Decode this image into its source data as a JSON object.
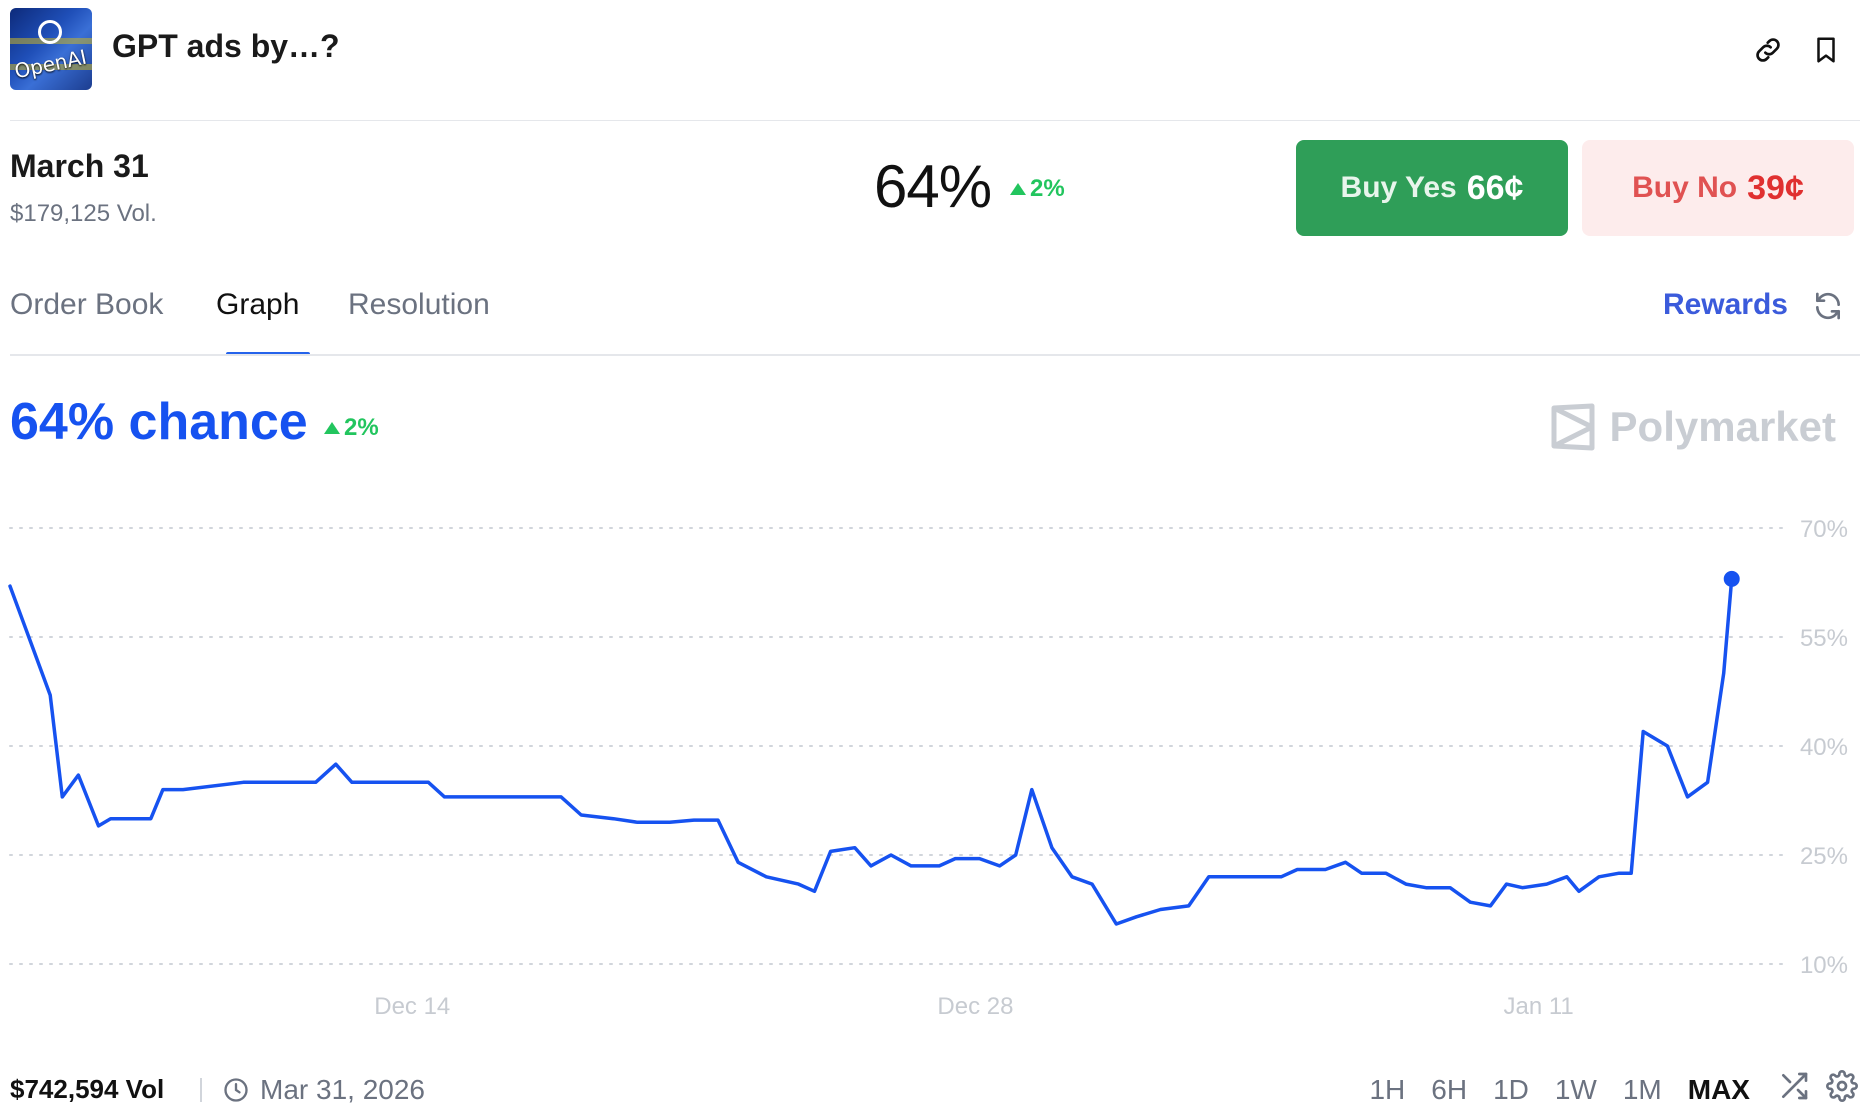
{
  "header": {
    "title": "GPT ads by…?",
    "thumbnail_text": "OpenAI"
  },
  "outcome": {
    "name": "March 31",
    "volume": "$179,125 Vol.",
    "probability": "64%",
    "change": "2%"
  },
  "buttons": {
    "yes_label": "Buy Yes",
    "yes_price": "66¢",
    "no_label": "Buy No",
    "no_price": "39¢"
  },
  "tabs": [
    {
      "label": "Order Book",
      "active": false
    },
    {
      "label": "Graph",
      "active": true
    },
    {
      "label": "Resolution",
      "active": false
    }
  ],
  "rewards_label": "Rewards",
  "graph": {
    "chance_text": "64% chance",
    "change": "2%",
    "brand": "Polymarket"
  },
  "footer": {
    "volume": "$742,594 Vol",
    "end_date": "Mar 31, 2026",
    "ranges": [
      "1H",
      "6H",
      "1D",
      "1W",
      "1M",
      "MAX"
    ],
    "active_range": "MAX"
  },
  "colors": {
    "line": "#1652f0",
    "yes_button": "#2f9e58",
    "no_button_bg": "#fdecec",
    "no_text": "#e03030",
    "positive": "#22c55e",
    "grid": "#d1d5db"
  },
  "chart_data": {
    "type": "line",
    "x_tick_labels": [
      "Dec 14",
      "Dec 28",
      "Jan 11"
    ],
    "y_tick_labels": [
      "70%",
      "55%",
      "40%",
      "25%",
      "10%"
    ],
    "y_ticks": [
      70,
      55,
      40,
      25,
      10
    ],
    "ylim": [
      10,
      70
    ],
    "series": [
      {
        "values": [
          [
            0,
            62
          ],
          [
            0.4,
            56
          ],
          [
            1.0,
            47
          ],
          [
            1.3,
            33
          ],
          [
            1.7,
            36
          ],
          [
            2.2,
            29
          ],
          [
            2.5,
            30
          ],
          [
            3.5,
            30
          ],
          [
            3.8,
            34
          ],
          [
            4.3,
            34
          ],
          [
            5.8,
            35
          ],
          [
            7.6,
            35
          ],
          [
            8.1,
            37.5
          ],
          [
            8.5,
            35
          ],
          [
            9.3,
            35
          ],
          [
            10.4,
            35
          ],
          [
            10.8,
            33
          ],
          [
            11.5,
            33
          ],
          [
            13.0,
            33
          ],
          [
            13.7,
            33
          ],
          [
            14.2,
            30.5
          ],
          [
            15.0,
            30
          ],
          [
            15.6,
            29.5
          ],
          [
            16.4,
            29.5
          ],
          [
            17.0,
            29.8
          ],
          [
            17.6,
            29.8
          ],
          [
            18.1,
            24
          ],
          [
            18.8,
            22
          ],
          [
            19.6,
            21
          ],
          [
            20.0,
            20
          ],
          [
            20.4,
            25.5
          ],
          [
            21.0,
            26
          ],
          [
            21.4,
            23.5
          ],
          [
            21.9,
            25
          ],
          [
            22.4,
            23.5
          ],
          [
            23.1,
            23.5
          ],
          [
            23.5,
            24.5
          ],
          [
            24.1,
            24.5
          ],
          [
            24.6,
            23.5
          ],
          [
            25.0,
            25
          ],
          [
            25.4,
            34
          ],
          [
            25.9,
            26
          ],
          [
            26.4,
            22
          ],
          [
            26.9,
            21
          ],
          [
            27.5,
            15.5
          ],
          [
            28.0,
            16.5
          ],
          [
            28.6,
            17.5
          ],
          [
            29.3,
            18
          ],
          [
            29.8,
            22
          ],
          [
            30.3,
            22
          ],
          [
            31.6,
            22
          ],
          [
            32.0,
            23
          ],
          [
            32.7,
            23
          ],
          [
            33.2,
            24
          ],
          [
            33.6,
            22.5
          ],
          [
            34.2,
            22.5
          ],
          [
            34.7,
            21
          ],
          [
            35.2,
            20.5
          ],
          [
            35.8,
            20.5
          ],
          [
            36.3,
            18.5
          ],
          [
            36.8,
            18
          ],
          [
            37.2,
            21
          ],
          [
            37.6,
            20.5
          ],
          [
            38.2,
            21
          ],
          [
            38.7,
            22
          ],
          [
            39.0,
            20
          ],
          [
            39.5,
            22
          ],
          [
            40.0,
            22.5
          ],
          [
            40.3,
            22.5
          ],
          [
            40.6,
            42
          ],
          [
            41.2,
            40
          ],
          [
            41.7,
            33
          ],
          [
            42.2,
            35
          ],
          [
            42.6,
            50
          ],
          [
            42.8,
            63
          ]
        ]
      }
    ],
    "grid": true,
    "end_marker": true
  }
}
